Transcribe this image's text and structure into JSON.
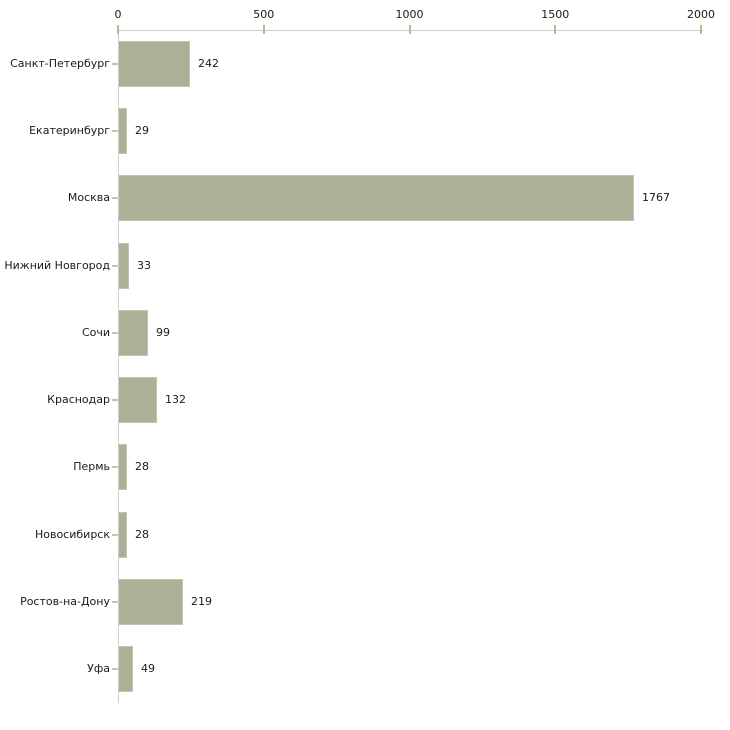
{
  "chart_data": {
    "type": "bar",
    "orientation": "horizontal",
    "title": "",
    "xlabel": "",
    "ylabel": "",
    "categories": [
      "Санкт-Петербург",
      "Екатеринбург",
      "Москва",
      "Нижний Новгород",
      "Сочи",
      "Краснодар",
      "Пермь",
      "Новосибирск",
      "Ростов-на-Дону",
      "Уфа"
    ],
    "values": [
      242,
      29,
      1767,
      33,
      99,
      132,
      28,
      28,
      219,
      49
    ],
    "value_labels": [
      "242",
      "29",
      "1767",
      "33",
      "99",
      "132",
      "28",
      "28",
      "219",
      "49"
    ],
    "xlim": [
      0,
      2000
    ],
    "x_ticks": [
      0,
      500,
      1000,
      1500,
      2000
    ],
    "x_tick_labels": [
      "0",
      "500",
      "1000",
      "1500",
      "2000"
    ],
    "grid": false,
    "legend": false,
    "axis_position": "top",
    "colors": {
      "bar_fill": "#abb196",
      "bar_edge": "#c2c6ab",
      "axis_line": "#cdcdcd",
      "x_tick_mark": "#b6ba8b",
      "category_tick_mark": "#c4c79f",
      "text": "#1a1a1a",
      "background": "#ffffff"
    }
  }
}
